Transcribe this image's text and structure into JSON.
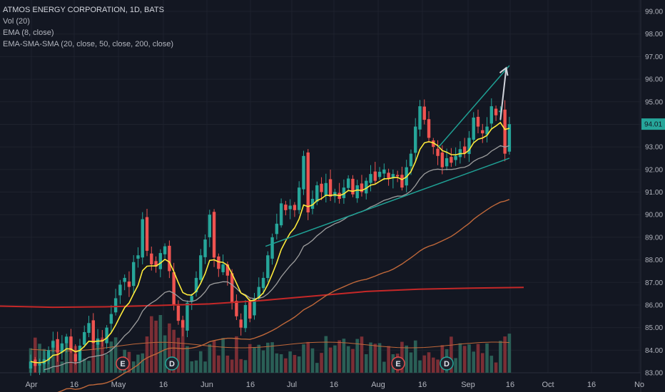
{
  "legend": {
    "title": "ATMOS ENERGY CORPORATION, 1D, BATS",
    "vol": "Vol (20)",
    "ema": "EMA (8, close)",
    "ma": "EMA-SMA-SMA (20, close, 50, close, 200, close)"
  },
  "last_price_label": "94.01",
  "colors": {
    "background": "#131722",
    "up": "#26a69a",
    "down": "#ef5350",
    "ema8": "#ffeb3b",
    "ema20": "#9e9e9e",
    "sma50": "#c0683a",
    "sma200": "#c62828",
    "channel": "#1fa195",
    "arrow": "#d1d4dc",
    "vol_up": "#2a5f56",
    "vol_down": "#7b2e35",
    "vol_ma": "#c0683a"
  },
  "chart_data": {
    "type": "candlestick",
    "title": "ATMOS ENERGY CORPORATION, 1D, BATS",
    "ylim": [
      83.0,
      99.0
    ],
    "y_ticks": [
      "83.00",
      "84.00",
      "85.00",
      "86.00",
      "87.00",
      "88.00",
      "89.00",
      "90.00",
      "91.00",
      "92.00",
      "93.00",
      "94.00",
      "95.00",
      "96.00",
      "97.00",
      "98.00",
      "99.00"
    ],
    "x_ticks": [
      "Apr",
      "16",
      "May",
      "16",
      "Jun",
      "16",
      "Jul",
      "16",
      "Aug",
      "16",
      "Sep",
      "16",
      "Oct",
      "16",
      "No"
    ],
    "last_close": 94.01,
    "closes": [
      83.5,
      83.3,
      83.4,
      83.6,
      84.0,
      84.4,
      83.9,
      84.3,
      84.6,
      84.0,
      83.5,
      84.2,
      84.8,
      85.2,
      84.3,
      84.5,
      84.4,
      85.0,
      85.6,
      86.3,
      86.9,
      87.2,
      86.8,
      87.9,
      88.2,
      89.8,
      88.4,
      87.8,
      87.7,
      88.3,
      88.6,
      87.5,
      86.0,
      85.3,
      85.0,
      86.1,
      86.4,
      87.2,
      88.2,
      88.9,
      90.0,
      88.1,
      87.6,
      87.8,
      87.3,
      86.1,
      85.5,
      85.0,
      86.0,
      85.4,
      86.3,
      86.8,
      87.2,
      88.2,
      89.0,
      89.6,
      90.5,
      90.2,
      90.4,
      90.2,
      91.2,
      92.6,
      90.1,
      90.7,
      91.3,
      91.0,
      91.4,
      90.8,
      91.0,
      90.7,
      91.2,
      91.6,
      90.9,
      91.3,
      91.0,
      91.5,
      91.8,
      91.5,
      91.9,
      92.0,
      91.6,
      91.8,
      91.7,
      91.2,
      92.1,
      92.7,
      93.9,
      94.8,
      94.2,
      93.4,
      93.0,
      92.6,
      92.1,
      92.5,
      92.3,
      92.6,
      92.9,
      92.7,
      93.4,
      94.3,
      93.9,
      93.6,
      93.9,
      94.8,
      94.4,
      94.6,
      92.7,
      94.01
    ],
    "series": [
      {
        "name": "EMA (8, close)"
      },
      {
        "name": "EMA 20"
      },
      {
        "name": "SMA 50"
      },
      {
        "name": "SMA 200",
        "values": [
          85.95,
          85.9,
          85.92,
          85.98,
          86.05,
          86.2,
          86.4,
          86.6,
          86.7,
          86.75,
          86.78
        ]
      }
    ],
    "earnings_markers": [
      "E",
      "D",
      "E",
      "D"
    ],
    "annotations": {
      "channel_upper": [
        [
          91.2,
          93.0
        ],
        [
          107,
          96.6
        ]
      ],
      "channel_lower": [
        [
          52.5,
          88.6
        ],
        [
          107,
          92.5
        ]
      ],
      "arrow": [
        [
          105,
          94.2
        ],
        [
          106.3,
          96.5
        ]
      ]
    }
  }
}
